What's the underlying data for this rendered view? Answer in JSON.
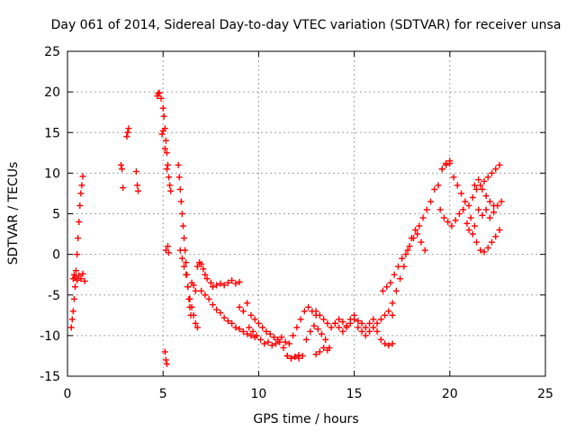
{
  "chart_data": {
    "type": "scatter",
    "title": "Day 061 of 2014, Sidereal Day-to-day VTEC variation (SDTVAR) for receiver unsa",
    "xlabel": "GPS time / hours",
    "ylabel": "SDTVAR / TECUs",
    "xlim": [
      0,
      25
    ],
    "ylim": [
      -15,
      25
    ],
    "xticks": [
      0,
      5,
      10,
      15,
      20,
      25
    ],
    "yticks": [
      -15,
      -10,
      -5,
      0,
      5,
      10,
      15,
      20,
      25
    ],
    "grid": true,
    "marker": "plus",
    "color": "#ff0000",
    "series": [
      {
        "name": "SDTVAR",
        "x": [
          0.2,
          0.25,
          0.3,
          0.35,
          0.4,
          0.45,
          0.5,
          0.55,
          0.6,
          0.65,
          0.7,
          0.75,
          0.8,
          0.3,
          0.35,
          0.4,
          0.5,
          0.6,
          0.7,
          0.8,
          0.9,
          2.8,
          2.85,
          2.9,
          3.1,
          3.15,
          3.2,
          3.6,
          3.65,
          3.7,
          4.7,
          4.75,
          4.8,
          4.9,
          5.0,
          5.05,
          5.1,
          5.15,
          5.2,
          5.25,
          5.3,
          5.35,
          5.4,
          4.95,
          5.0,
          5.1,
          5.2,
          5.15,
          5.25,
          5.3,
          5.8,
          5.85,
          5.9,
          5.95,
          6.0,
          6.05,
          6.1,
          6.15,
          6.2,
          6.25,
          6.3,
          6.35,
          6.4,
          6.45,
          5.9,
          6.0,
          6.1,
          6.2,
          6.3,
          6.4,
          6.5,
          6.6,
          6.7,
          6.8,
          6.5,
          6.6,
          6.7,
          6.8,
          6.9,
          7.0,
          7.1,
          7.2,
          7.3,
          7.5,
          7.6,
          7.8,
          8.0,
          8.2,
          8.4,
          8.6,
          8.8,
          9.0,
          7.0,
          7.2,
          7.4,
          7.6,
          7.8,
          8.0,
          8.2,
          8.4,
          8.6,
          8.8,
          9.0,
          9.2,
          9.4,
          9.6,
          9.8,
          9.0,
          9.2,
          9.4,
          9.6,
          9.8,
          10.0,
          10.2,
          10.4,
          10.6,
          10.8,
          11.0,
          11.2,
          11.4,
          11.6,
          11.8,
          12.0,
          12.2,
          12.4,
          12.6,
          12.8,
          13.0,
          9.5,
          9.7,
          9.9,
          10.1,
          10.3,
          10.5,
          10.7,
          10.9,
          11.1,
          11.3,
          11.5,
          11.7,
          11.9,
          12.1,
          12.3,
          12.5,
          12.7,
          12.9,
          13.1,
          13.3,
          13.5,
          13.7,
          13.0,
          13.2,
          13.4,
          13.6,
          13.8,
          14.0,
          14.2,
          14.4,
          14.6,
          14.8,
          15.0,
          15.2,
          15.4,
          15.6,
          15.8,
          16.0,
          16.2,
          16.4,
          16.6,
          16.8,
          17.0,
          14.0,
          14.2,
          14.4,
          14.6,
          14.8,
          15.0,
          15.2,
          15.4,
          15.6,
          15.8,
          16.0,
          16.2,
          16.4,
          16.6,
          16.8,
          17.0,
          17.0,
          17.2,
          17.4,
          17.6,
          17.8,
          18.0,
          18.2,
          18.4,
          18.6,
          18.8,
          19.0,
          19.2,
          19.4,
          19.6,
          19.8,
          20.0,
          16.5,
          16.7,
          16.9,
          17.1,
          17.3,
          17.5,
          17.7,
          17.9,
          18.1,
          18.3,
          18.5,
          18.7,
          19.5,
          19.7,
          19.9,
          20.1,
          20.3,
          20.5,
          20.7,
          20.9,
          21.1,
          21.3,
          21.5,
          21.7,
          21.9,
          22.1,
          22.3,
          22.5,
          22.7,
          19.6,
          19.8,
          20.0,
          20.2,
          20.4,
          20.6,
          20.8,
          21.0,
          21.2,
          21.4,
          21.6,
          21.8,
          22.0,
          22.2,
          22.4,
          22.6,
          21.0,
          21.2,
          21.4,
          21.6,
          21.8,
          22.0,
          22.2,
          22.4,
          22.6,
          21.3,
          21.5,
          21.7,
          21.9,
          22.1,
          22.3,
          11.5,
          11.7,
          11.9,
          12.1,
          13.0,
          13.2,
          13.4,
          13.6,
          5.1,
          5.15,
          5.2
        ],
        "y": [
          -9,
          -8,
          -7,
          -5.5,
          -4,
          -2,
          0,
          2,
          4,
          6,
          7.5,
          8.5,
          9.6,
          -3,
          -2.5,
          -2.8,
          -3.2,
          -2.6,
          -3.0,
          -2.4,
          -3.3,
          11,
          10.5,
          8.2,
          14.5,
          15.0,
          15.5,
          10.2,
          8.5,
          7.8,
          19.5,
          19.8,
          19.9,
          19.2,
          18.0,
          17.0,
          15.5,
          14.0,
          12.5,
          11.0,
          9.5,
          8.5,
          7.8,
          14.8,
          15.2,
          13.0,
          10.5,
          0.5,
          1.0,
          0.2,
          11,
          9.5,
          8,
          6.5,
          5,
          3.5,
          2,
          0.5,
          -1,
          -2.5,
          -4,
          -5.5,
          -6.5,
          -7.5,
          0.5,
          -0.5,
          -1.5,
          -2.5,
          -4,
          -5.5,
          -6.5,
          -7.5,
          -8.5,
          -9.0,
          -3.5,
          -3.8,
          -4.5,
          -1.5,
          -1.0,
          -1.2,
          -1.8,
          -2.5,
          -3.0,
          -3.5,
          -4.0,
          -3.8,
          -3.6,
          -3.8,
          -3.5,
          -3.2,
          -3.6,
          -3.4,
          -4.5,
          -5.0,
          -5.5,
          -6.2,
          -6.8,
          -7.2,
          -7.8,
          -8.2,
          -8.5,
          -9.0,
          -9.2,
          -9.5,
          -9.8,
          -10.0,
          -10.2,
          -6.5,
          -7.0,
          -6.0,
          -7.5,
          -8.0,
          -8.5,
          -9.0,
          -9.5,
          -9.8,
          -10.2,
          -10.5,
          -10.2,
          -10.8,
          -11.0,
          -10.0,
          -9.0,
          -8.0,
          -7.0,
          -6.5,
          -7.0,
          -7.5,
          -9.0,
          -9.5,
          -10.0,
          -10.5,
          -11.0,
          -10.8,
          -11.2,
          -11.0,
          -10.8,
          -11.5,
          -12.5,
          -12.8,
          -12.6,
          -12.8,
          -12.5,
          -10.5,
          -9.5,
          -8.8,
          -9.2,
          -9.8,
          -10.5,
          -11.5,
          -7.0,
          -7.5,
          -8.0,
          -8.5,
          -9.0,
          -8.5,
          -8.0,
          -8.3,
          -8.8,
          -8.0,
          -7.5,
          -8.2,
          -8.5,
          -9.0,
          -8.5,
          -8.0,
          -9.5,
          -10.5,
          -11.0,
          -11.2,
          -11.0,
          -8.5,
          -9.0,
          -9.5,
          -9.0,
          -8.5,
          -8.0,
          -9.0,
          -9.5,
          -10.0,
          -9.5,
          -9.0,
          -8.5,
          -8.0,
          -7.5,
          -7.0,
          -7.5,
          -6.0,
          -4.5,
          -3.0,
          -1.5,
          0.5,
          2.0,
          3.0,
          3.5,
          4.5,
          5.5,
          6.5,
          8.0,
          8.5,
          10.5,
          11.0,
          11.2,
          -4.5,
          -4.0,
          -3.5,
          -2.5,
          -1.5,
          -0.5,
          0.0,
          1.0,
          2.0,
          2.5,
          1.5,
          0.5,
          5.5,
          4.5,
          4.0,
          3.5,
          4.2,
          5.0,
          5.5,
          3.8,
          4.5,
          3.5,
          5.5,
          4.8,
          5.5,
          4.5,
          5.2,
          6.0,
          6.5,
          10.5,
          11.2,
          11.5,
          9.5,
          8.5,
          7.5,
          6.5,
          6.0,
          7.0,
          8.0,
          8.5,
          9.0,
          9.5,
          10.0,
          10.5,
          11.0,
          3.0,
          2.5,
          1.5,
          0.5,
          0.3,
          0.8,
          1.5,
          2.2,
          3.0,
          8.5,
          9.2,
          8.0,
          7.2,
          6.5,
          6.0,
          -12.5,
          -12.8,
          -12.6,
          -12.4,
          -12.3,
          -12.0,
          -11.5,
          -11.8,
          -12.0,
          -13.0,
          -13.5
        ]
      }
    ]
  }
}
